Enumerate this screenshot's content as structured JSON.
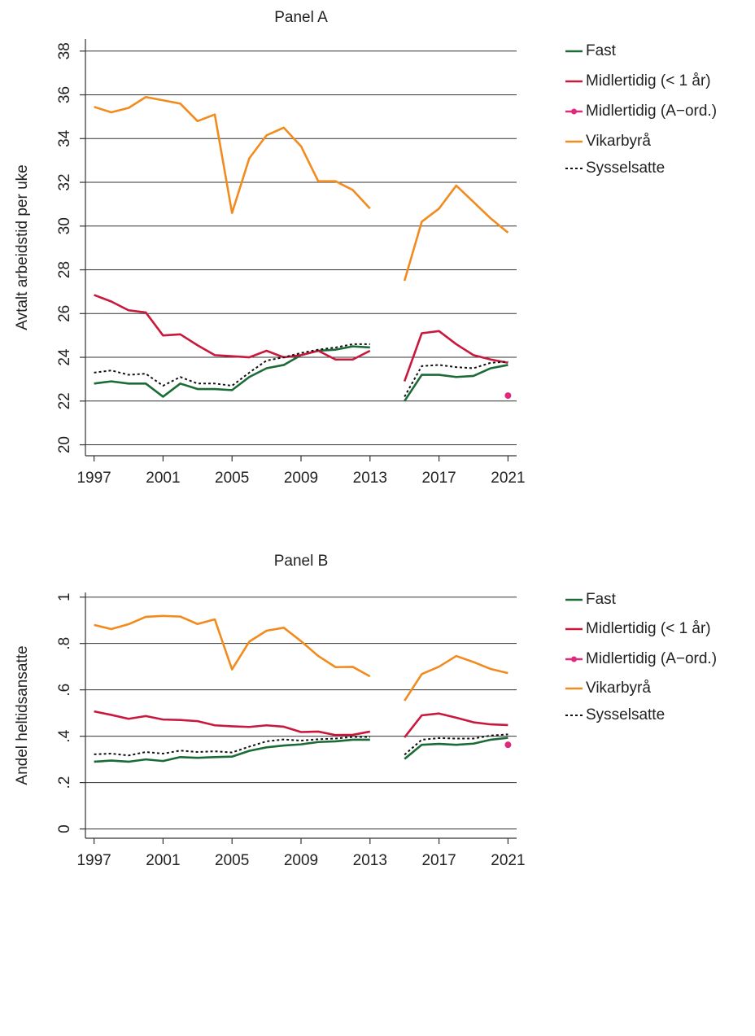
{
  "chart_data": [
    {
      "type": "line",
      "title": "Panel A",
      "y_label": "Avtalt arbeidstid per uke",
      "x": [
        1997,
        1998,
        1999,
        2000,
        2001,
        2002,
        2003,
        2004,
        2005,
        2006,
        2007,
        2008,
        2009,
        2010,
        2011,
        2012,
        2013,
        2014,
        2015,
        2016,
        2017,
        2018,
        2019,
        2020,
        2021
      ],
      "xlim": [
        1996.5,
        2021.5
      ],
      "xticks": [
        1997,
        2001,
        2005,
        2009,
        2013,
        2017,
        2021
      ],
      "ylim": [
        19.5,
        38.55
      ],
      "yticks": [
        20,
        22,
        24,
        26,
        28,
        30,
        32,
        34,
        36,
        38
      ],
      "grid": true,
      "series": [
        {
          "name": "Fast",
          "color": "#1a6b35",
          "values": [
            22.8,
            22.9,
            22.8,
            22.8,
            22.2,
            22.8,
            22.55,
            22.55,
            22.5,
            23.1,
            23.5,
            23.65,
            24.1,
            24.3,
            24.35,
            24.5,
            24.45,
            null,
            22.0,
            23.2,
            23.2,
            23.1,
            23.15,
            23.5,
            23.65
          ]
        },
        {
          "name": "Midlertidig (< 1 år)",
          "color": "#c8193c",
          "values": [
            26.85,
            26.55,
            26.15,
            26.05,
            25.0,
            25.05,
            24.55,
            24.1,
            24.05,
            24.0,
            24.3,
            24.0,
            24.1,
            24.3,
            23.9,
            23.9,
            24.3,
            null,
            22.9,
            25.1,
            25.2,
            24.6,
            24.1,
            23.9,
            23.75
          ]
        },
        {
          "name": "Midlertidig (A−ord.)",
          "color": "#e0287d",
          "marker": "circle",
          "values": [
            null,
            null,
            null,
            null,
            null,
            null,
            null,
            null,
            null,
            null,
            null,
            null,
            null,
            null,
            null,
            null,
            null,
            null,
            null,
            null,
            null,
            null,
            null,
            null,
            22.25
          ]
        },
        {
          "name": "Vikarbyrå",
          "color": "#f28b1e",
          "values": [
            35.45,
            35.2,
            35.4,
            35.9,
            35.75,
            35.6,
            34.8,
            35.1,
            30.6,
            33.1,
            34.15,
            34.5,
            33.65,
            32.05,
            32.05,
            31.65,
            30.8,
            null,
            27.5,
            30.2,
            30.8,
            31.85,
            31.1,
            30.35,
            29.7
          ]
        },
        {
          "name": "Sysselsatte",
          "color": "#111111",
          "dash": "dotted",
          "values": [
            23.3,
            23.4,
            23.2,
            23.25,
            22.7,
            23.1,
            22.8,
            22.8,
            22.7,
            23.3,
            23.85,
            24.0,
            24.2,
            24.35,
            24.45,
            24.6,
            24.6,
            null,
            22.2,
            23.6,
            23.65,
            23.55,
            23.5,
            23.75,
            23.8
          ]
        }
      ]
    },
    {
      "type": "line",
      "title": "Panel B",
      "y_label": "Andel heltidsansatte",
      "x": [
        1997,
        1998,
        1999,
        2000,
        2001,
        2002,
        2003,
        2004,
        2005,
        2006,
        2007,
        2008,
        2009,
        2010,
        2011,
        2012,
        2013,
        2014,
        2015,
        2016,
        2017,
        2018,
        2019,
        2020,
        2021
      ],
      "xlim": [
        1996.5,
        2021.5
      ],
      "xticks": [
        1997,
        2001,
        2005,
        2009,
        2013,
        2017,
        2021
      ],
      "ylim": [
        -0.04,
        1.02
      ],
      "yticks": [
        0,
        {
          "value": 0.2,
          "label": ".2"
        },
        {
          "value": 0.4,
          "label": ".4"
        },
        {
          "value": 0.6,
          "label": ".6"
        },
        {
          "value": 0.8,
          "label": ".8"
        },
        1
      ],
      "grid": true,
      "series": [
        {
          "name": "Fast",
          "color": "#1a6b35",
          "values": [
            0.29,
            0.295,
            0.29,
            0.3,
            0.293,
            0.31,
            0.307,
            0.31,
            0.312,
            0.337,
            0.352,
            0.36,
            0.365,
            0.375,
            0.378,
            0.385,
            0.385,
            null,
            0.302,
            0.363,
            0.367,
            0.363,
            0.368,
            0.385,
            0.393
          ]
        },
        {
          "name": "Midlertidig (< 1 år)",
          "color": "#c8193c",
          "values": [
            0.507,
            0.492,
            0.475,
            0.487,
            0.472,
            0.47,
            0.465,
            0.447,
            0.443,
            0.44,
            0.447,
            0.441,
            0.418,
            0.42,
            0.405,
            0.406,
            0.42,
            null,
            0.395,
            0.49,
            0.498,
            0.48,
            0.46,
            0.451,
            0.448
          ]
        },
        {
          "name": "Midlertidig (A−ord.)",
          "color": "#e0287d",
          "marker": "circle",
          "values": [
            null,
            null,
            null,
            null,
            null,
            null,
            null,
            null,
            null,
            null,
            null,
            null,
            null,
            null,
            null,
            null,
            null,
            null,
            null,
            null,
            null,
            null,
            null,
            null,
            0.363
          ]
        },
        {
          "name": "Vikarbyrå",
          "color": "#f28b1e",
          "values": [
            0.88,
            0.862,
            0.883,
            0.915,
            0.919,
            0.916,
            0.884,
            0.904,
            0.688,
            0.808,
            0.855,
            0.868,
            0.81,
            0.746,
            0.698,
            0.699,
            0.658,
            null,
            0.553,
            0.668,
            0.7,
            0.746,
            0.72,
            0.69,
            0.672
          ]
        },
        {
          "name": "Sysselsatte",
          "color": "#111111",
          "dash": "dotted",
          "values": [
            0.322,
            0.325,
            0.317,
            0.332,
            0.325,
            0.338,
            0.332,
            0.335,
            0.33,
            0.355,
            0.378,
            0.386,
            0.381,
            0.387,
            0.39,
            0.397,
            0.397,
            null,
            0.32,
            0.385,
            0.392,
            0.39,
            0.39,
            0.403,
            0.408
          ]
        }
      ]
    }
  ]
}
